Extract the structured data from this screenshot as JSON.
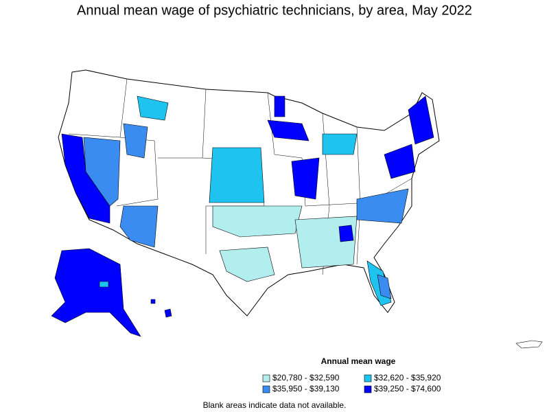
{
  "title": "Annual mean wage of psychiatric technicians, by area, May 2022",
  "legend": {
    "title": "Annual mean wage",
    "items": [
      {
        "label": "$20,780 - $32,590",
        "color": "#b2eeee"
      },
      {
        "label": "$32,620 - $35,920",
        "color": "#1ec3f0"
      },
      {
        "label": "$35,950 - $39,130",
        "color": "#3a8cf0"
      },
      {
        "label": "$39,250 - $74,600",
        "color": "#0000ff"
      }
    ]
  },
  "footnote": "Blank areas indicate data not available."
}
